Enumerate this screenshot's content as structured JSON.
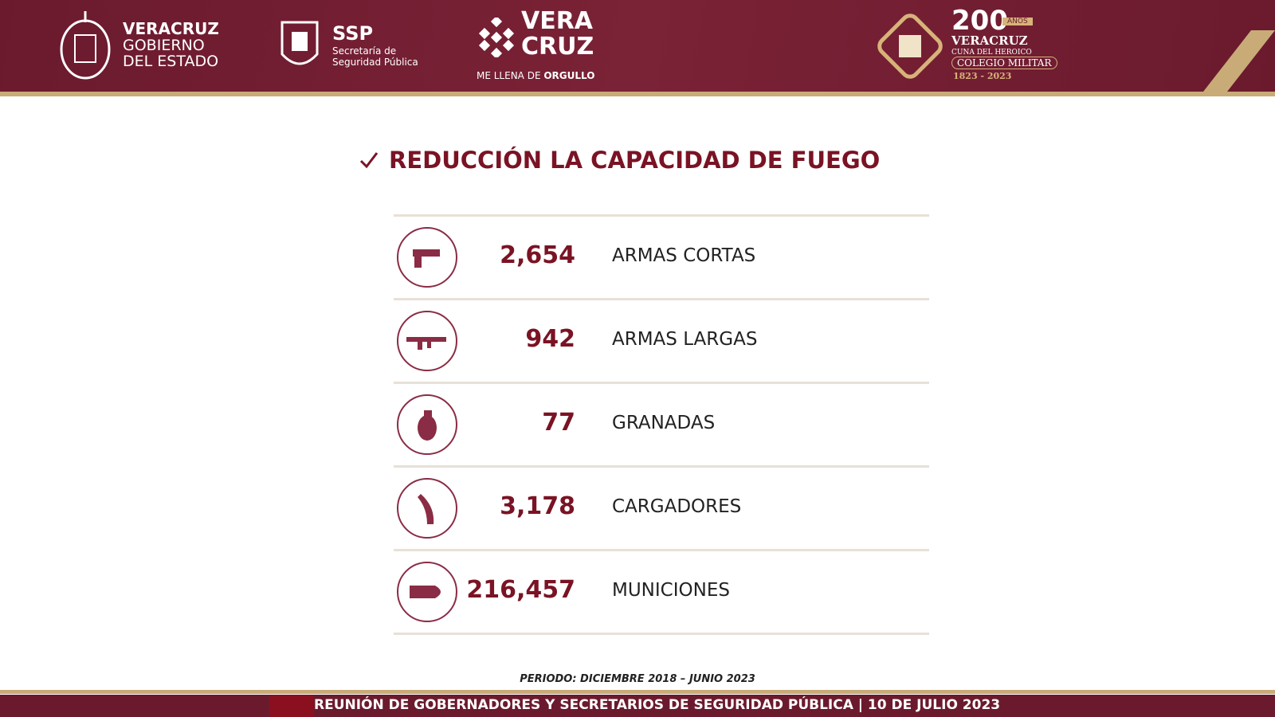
{
  "header": {
    "gob": {
      "line1": "VERACRUZ",
      "line2": "GOBIERNO",
      "line3": "DEL ESTADO"
    },
    "ssp": {
      "title": "SSP",
      "line1": "Secretaría de",
      "line2": "Seguridad Pública"
    },
    "brand": {
      "line1": "VERA",
      "line2": "CRUZ",
      "tagline": "ME LLENA DE",
      "tagline_bold": "ORGULLO"
    },
    "anniversary": {
      "number": "200",
      "unit": "AÑOS",
      "line1": "VERACRUZ",
      "line2": "CUNA DEL HEROICO",
      "line3": "COLEGIO MILITAR",
      "years": "1823 - 2023"
    }
  },
  "title": "REDUCCIÓN LA CAPACIDAD DE FUEGO",
  "rows": [
    {
      "value": "2,654",
      "label": "ARMAS CORTAS"
    },
    {
      "value": "942",
      "label": "ARMAS LARGAS"
    },
    {
      "value": "77",
      "label": "GRANADAS"
    },
    {
      "value": "3,178",
      "label": "CARGADORES"
    },
    {
      "value": "216,457",
      "label": "MUNICIONES"
    }
  ],
  "period": "PERIODO: DICIEMBRE 2018 – JUNIO 2023",
  "footer": "REUNIÓN DE GOBERNADORES Y SECRETARIOS DE SEGURIDAD PÚBLICA | 10 DE JULIO 2023"
}
